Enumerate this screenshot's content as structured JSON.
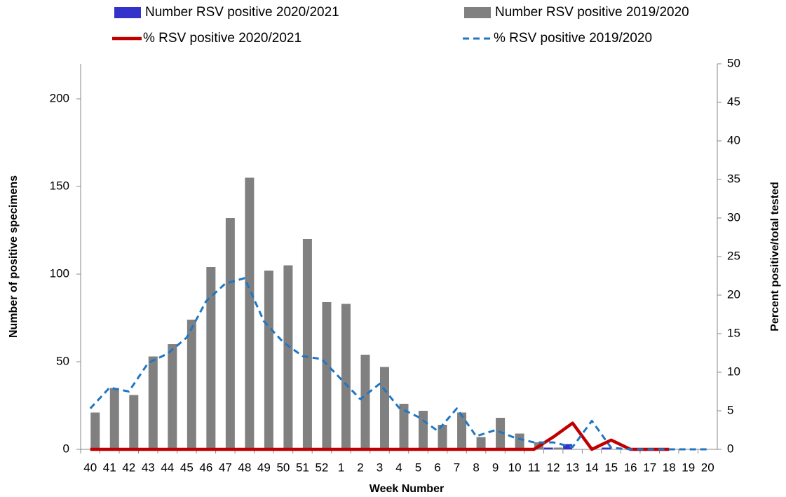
{
  "chart_data": {
    "type": "combo",
    "x_label": "Week Number",
    "y_label": "Number of positive specimens",
    "y2_label": "Percent positive/total tested",
    "categories": [
      "40",
      "41",
      "42",
      "43",
      "44",
      "45",
      "46",
      "47",
      "48",
      "49",
      "50",
      "51",
      "52",
      "1",
      "2",
      "3",
      "4",
      "5",
      "6",
      "7",
      "8",
      "9",
      "10",
      "11",
      "12",
      "13",
      "14",
      "15",
      "16",
      "17",
      "18",
      "19",
      "20"
    ],
    "ylim": [
      0,
      220
    ],
    "yticks": [
      0,
      50,
      100,
      150,
      200
    ],
    "y2lim": [
      0,
      50
    ],
    "y2ticks": [
      0,
      5,
      10,
      15,
      20,
      25,
      30,
      35,
      40,
      45,
      50
    ],
    "series": [
      {
        "name": "Number RSV positive 2020/2021",
        "type": "bar",
        "color": "#3333cc",
        "values": [
          0,
          0,
          0,
          0,
          0,
          0,
          0,
          0,
          0,
          0,
          0,
          0,
          0,
          0,
          0,
          0,
          0,
          0,
          0,
          0,
          0,
          0,
          0,
          0,
          1,
          3,
          0,
          1,
          0,
          0,
          0,
          0,
          0
        ]
      },
      {
        "name": "Number RSV positive 2019/2020",
        "type": "bar",
        "color": "#808080",
        "values": [
          21,
          35,
          31,
          53,
          60,
          74,
          104,
          132,
          155,
          102,
          105,
          120,
          84,
          83,
          54,
          47,
          26,
          22,
          14,
          21,
          7,
          18,
          9,
          4,
          1,
          0,
          0,
          0,
          0,
          0,
          0,
          0,
          0
        ]
      },
      {
        "name": "% RSV positive 2020/2021",
        "type": "line",
        "axis": "y2",
        "color": "#c00000",
        "dashed": false,
        "values": [
          0,
          0,
          0,
          0,
          0,
          0,
          0,
          0,
          0,
          0,
          0,
          0,
          0,
          0,
          0,
          0,
          0,
          0,
          0,
          0,
          0,
          0,
          0,
          0,
          1.6,
          3.4,
          0,
          1.2,
          0,
          0,
          0,
          null,
          null
        ]
      },
      {
        "name": "% RSV positive 2019/2020",
        "type": "line",
        "axis": "y2",
        "color": "#1f77c4",
        "dashed": true,
        "values": [
          5.3,
          8.0,
          7.5,
          11.2,
          12.4,
          14.5,
          19.2,
          21.5,
          22.2,
          16.6,
          13.9,
          12.1,
          11.7,
          9.1,
          6.5,
          8.5,
          5.4,
          4.2,
          2.4,
          5.3,
          1.7,
          2.5,
          1.5,
          0.9,
          0.9,
          0.3,
          3.7,
          0.2,
          0,
          0,
          0,
          0,
          0
        ]
      }
    ]
  }
}
